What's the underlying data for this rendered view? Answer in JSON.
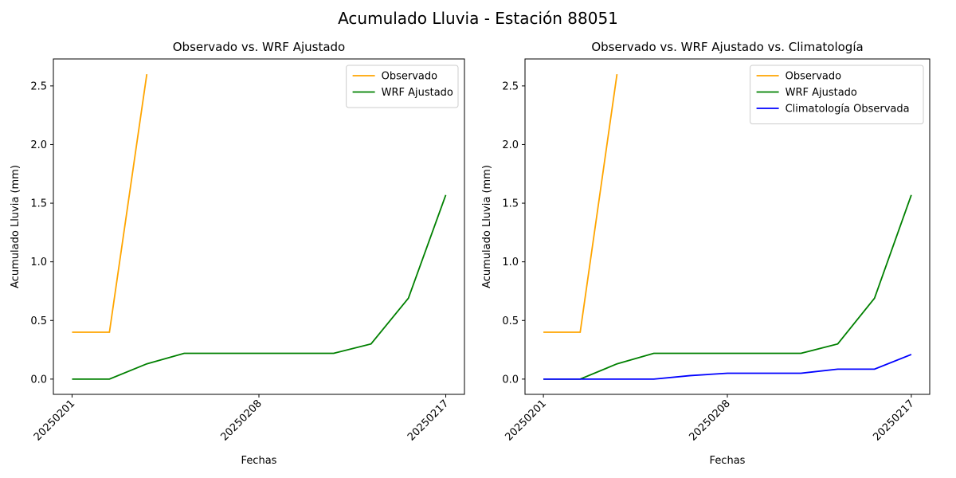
{
  "title": "Acumulado Lluvia - Estación 88051",
  "chart_data": [
    {
      "type": "line",
      "title": "Observado vs. WRF Ajustado",
      "xlabel": "Fechas",
      "ylabel": "Acumulado Lluvia (mm)",
      "categories": [
        "20250201",
        null,
        null,
        null,
        null,
        "20250208",
        null,
        null,
        null,
        null,
        "20250217"
      ],
      "series": [
        {
          "name": "Observado",
          "color": "orange",
          "values": [
            0.4,
            0.4,
            2.6,
            null,
            null,
            null,
            null,
            null,
            null,
            null,
            null
          ]
        },
        {
          "name": "WRF Ajustado",
          "color": "green",
          "values": [
            0,
            0,
            0.13,
            0.22,
            0.22,
            0.22,
            0.22,
            0.22,
            0.3,
            0.69,
            1.57
          ]
        }
      ],
      "ylim": [
        -0.13,
        2.73
      ],
      "yticks": [
        {
          "value": 0,
          "label": "0.0"
        },
        0.5,
        {
          "value": 1,
          "label": "1.0"
        },
        1.5,
        {
          "value": 2,
          "label": "2.0"
        },
        2.5
      ],
      "legend": "upper right"
    },
    {
      "type": "line",
      "title": "Observado vs. WRF Ajustado vs. Climatología",
      "xlabel": "Fechas",
      "ylabel": "Acumulado Lluvia (mm)",
      "categories": [
        "20250201",
        null,
        null,
        null,
        null,
        "20250208",
        null,
        null,
        null,
        null,
        "20250217"
      ],
      "series": [
        {
          "name": "Observado",
          "color": "orange",
          "values": [
            0.4,
            0.4,
            2.6,
            null,
            null,
            null,
            null,
            null,
            null,
            null,
            null
          ]
        },
        {
          "name": "WRF Ajustado",
          "color": "green",
          "values": [
            0,
            0,
            0.13,
            0.22,
            0.22,
            0.22,
            0.22,
            0.22,
            0.3,
            0.69,
            1.57
          ]
        },
        {
          "name": "Climatología Observada",
          "color": "blue",
          "values": [
            0,
            0,
            0,
            0,
            0.03,
            0.05,
            0.05,
            0.05,
            0.085,
            0.085,
            0.21
          ]
        }
      ],
      "ylim": [
        -0.13,
        2.73
      ],
      "yticks": [
        {
          "value": 0,
          "label": "0.0"
        },
        0.5,
        {
          "value": 1,
          "label": "1.0"
        },
        1.5,
        {
          "value": 2,
          "label": "2.0"
        },
        2.5
      ],
      "legend": "upper right"
    }
  ]
}
